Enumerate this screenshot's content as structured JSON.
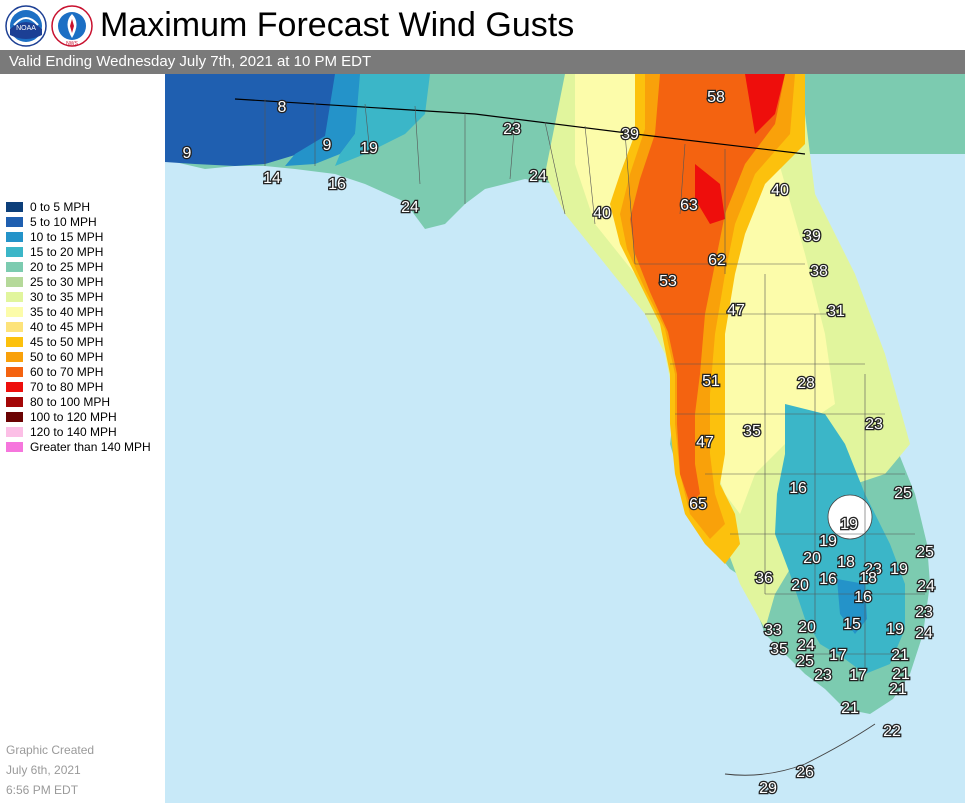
{
  "header": {
    "title": "Maximum Forecast Wind Gusts",
    "valid": "Valid Ending Wednesday July 7th, 2021 at 10 PM EDT",
    "logo_noaa_text": "NOAA",
    "logo_nws_text": "NWS"
  },
  "legend": [
    {
      "label": "0 to 5 MPH",
      "color": "#0d3f7a"
    },
    {
      "label": "5 to 10 MPH",
      "color": "#1f5fb0"
    },
    {
      "label": "10 to 15 MPH",
      "color": "#2493c9"
    },
    {
      "label": "15 to 20 MPH",
      "color": "#3bb6c8"
    },
    {
      "label": "20 to 25 MPH",
      "color": "#7ccbb0"
    },
    {
      "label": "25 to 30 MPH",
      "color": "#b5d99a"
    },
    {
      "label": "30 to 35 MPH",
      "color": "#e1f59d"
    },
    {
      "label": "35 to 40 MPH",
      "color": "#fcfcaa"
    },
    {
      "label": "40 to 45 MPH",
      "color": "#fde37a"
    },
    {
      "label": "45 to 50 MPH",
      "color": "#fcc10d"
    },
    {
      "label": "50 to 60 MPH",
      "color": "#f9a10a"
    },
    {
      "label": "60 to 70 MPH",
      "color": "#f46310"
    },
    {
      "label": "70 to 80 MPH",
      "color": "#ee0e0c"
    },
    {
      "label": "80 to 100 MPH",
      "color": "#a40707"
    },
    {
      "label": "100 to 120 MPH",
      "color": "#6b0303"
    },
    {
      "label": "120 to 140 MPH",
      "color": "#fcbfe6"
    },
    {
      "label": "Greater than 140 MPH",
      "color": "#f676dd"
    }
  ],
  "created": {
    "line1": "Graphic Created",
    "line2": "July 6th, 2021",
    "line3": "6:56 PM EDT"
  },
  "map": {
    "water_color": "#c8e9f8",
    "land_outside_color": "#ffffff",
    "gust_values": [
      "8",
      "23",
      "58",
      "39",
      "9",
      "19",
      "9",
      "14",
      "16",
      "24",
      "24",
      "63",
      "40",
      "40",
      "39",
      "62",
      "38",
      "53",
      "47",
      "31",
      "51",
      "28",
      "23",
      "47",
      "35",
      "16",
      "25",
      "65",
      "19",
      "19",
      "20",
      "25",
      "18",
      "19",
      "23",
      "36",
      "20",
      "16",
      "18",
      "24",
      "16",
      "23",
      "33",
      "20",
      "15",
      "19",
      "24",
      "35",
      "24",
      "17",
      "21",
      "25",
      "23",
      "17",
      "21",
      "21",
      "21",
      "22",
      "26",
      "29"
    ]
  }
}
